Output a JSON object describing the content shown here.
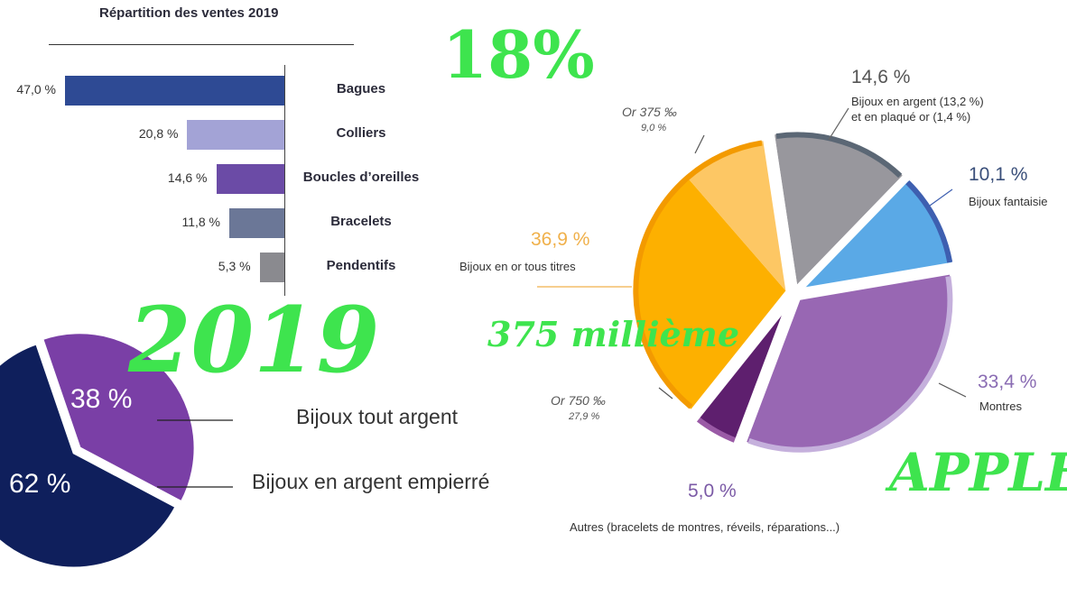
{
  "overlays": {
    "percent": "18%",
    "year": "2019",
    "millieme": "375 millième",
    "brand": "APPLE"
  },
  "chart_data": [
    {
      "type": "bar",
      "title": "Répartition des ventes 2019",
      "categories": [
        "Bagues",
        "Colliers",
        "Boucles d’oreilles",
        "Bracelets",
        "Pendentifs"
      ],
      "values": [
        47.0,
        20.8,
        14.6,
        11.8,
        5.3
      ],
      "value_labels": [
        "47,0 %",
        "20,8 %",
        "14,6 %",
        "11,8 %",
        "5,3 %"
      ],
      "colors": [
        "#2e4a94",
        "#a3a3d6",
        "#6b4ba6",
        "#6b7797",
        "#8a8a8f"
      ]
    },
    {
      "type": "pie",
      "slices": [
        {
          "label": "Bijoux en argent (13,2 %)",
          "label_line2": "et en plaqué or (1,4 %)",
          "value": 14.6,
          "value_label": "14,6 %",
          "color": "#98979d",
          "edge": "#5b6775"
        },
        {
          "label": "Bijoux fantaisie",
          "value": 10.1,
          "value_label": "10,1 %",
          "color": "#5aa9e6",
          "edge": "#3e5fb0"
        },
        {
          "label": "Montres",
          "value": 33.4,
          "value_label": "33,4 %",
          "color": "#9867b3",
          "edge": "#c5b0dc"
        },
        {
          "label": "Autres (bracelets de montres, réveils, réparations...)",
          "value": 5.0,
          "value_label": "5,0 %",
          "color": "#5e1f6e",
          "edge": "#9a5aa6"
        },
        {
          "label": "Bijoux en or tous titres",
          "value": 36.9,
          "value_label": "36,9 %",
          "color": "#fdb000",
          "edge": "#f39a00",
          "sub": [
            {
              "label": "Or 750 ‰",
              "value": 27.9,
              "value_label": "27,9 %",
              "color": "#fdb000"
            },
            {
              "label": "Or 375 ‰",
              "value": 9.0,
              "value_label": "9,0 %",
              "color": "#fdc764"
            }
          ]
        }
      ]
    },
    {
      "type": "pie",
      "slices": [
        {
          "label": "Bijoux tout argent",
          "value": 38,
          "value_label": "38 %",
          "color": "#7a3fa6"
        },
        {
          "label": "Bijoux en argent empierré",
          "value": 62,
          "value_label": "62 %",
          "color": "#0f1f5c"
        }
      ]
    }
  ]
}
